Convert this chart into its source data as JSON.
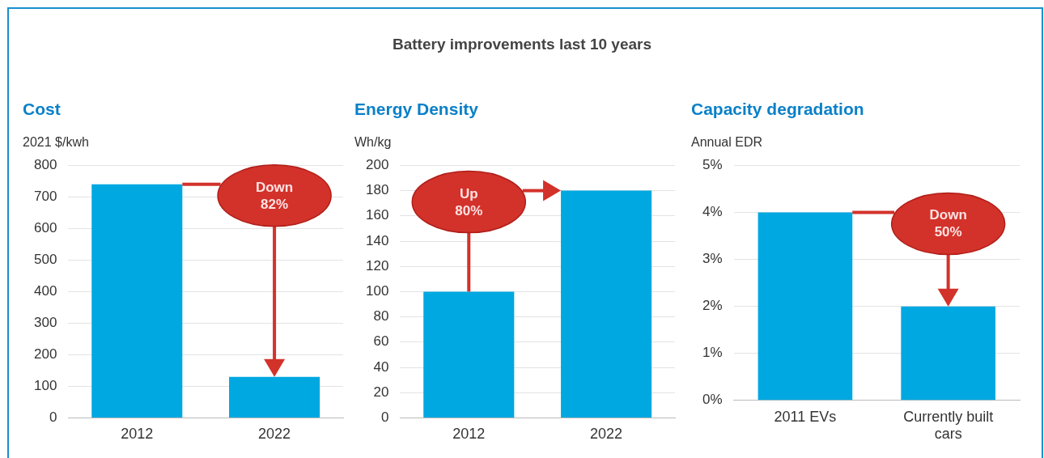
{
  "chart_data": [
    {
      "type": "other",
      "title": "Battery improvements last 10 years"
    },
    {
      "type": "bar",
      "title": "Cost",
      "ylabel": "2021 $/kwh",
      "categories": [
        "2012",
        "2022"
      ],
      "values": [
        740,
        130
      ],
      "color": "#00a8e1",
      "ylim": [
        0,
        800
      ],
      "yticks": [
        0,
        100,
        200,
        300,
        400,
        500,
        600,
        700,
        800
      ],
      "grid": "y",
      "annotations": [
        "Down 82%"
      ]
    },
    {
      "type": "bar",
      "title": "Energy Density",
      "ylabel": "Wh/kg",
      "categories": [
        "2012",
        "2022"
      ],
      "values": [
        100,
        180
      ],
      "color": "#00a8e1",
      "ylim": [
        0,
        200
      ],
      "yticks": [
        0,
        20,
        40,
        60,
        80,
        100,
        120,
        140,
        160,
        180,
        200
      ],
      "grid": "y",
      "annotations": [
        {
          "text": "Up 80%",
          "x": "2012",
          "y": 100
        }
      ]
    },
    {
      "type": "bar",
      "title": "Capacity degradation",
      "ylabel": "Annual EDR",
      "categories": [
        "2011 EVs",
        "Currently built cars"
      ],
      "values": [
        4,
        2
      ],
      "color": "#00a8e1",
      "ylim": [
        0,
        5
      ],
      "yticks": [
        {
          "value": 0,
          "label": "0%"
        },
        {
          "value": 1,
          "label": "1%"
        },
        {
          "value": 2,
          "label": "2%"
        },
        {
          "value": 3,
          "label": "3%"
        },
        {
          "value": 4,
          "label": "4%"
        },
        {
          "value": 5,
          "label": "5%"
        }
      ],
      "grid": "y",
      "annotations": [
        "Down 50%"
      ]
    }
  ]
}
